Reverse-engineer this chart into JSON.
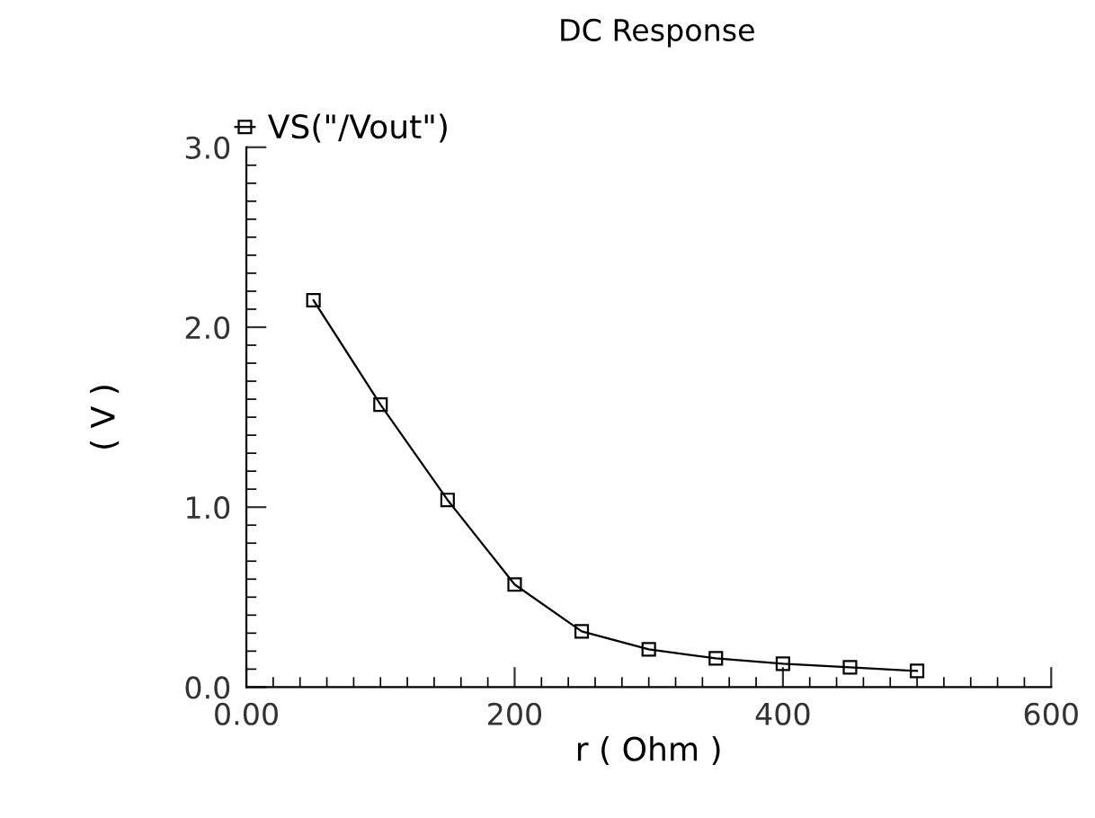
{
  "chart_data": {
    "type": "line",
    "title": "DC Response",
    "xlabel": "r ( Ohm )",
    "ylabel": "( V )",
    "x": [
      50,
      100,
      150,
      200,
      250,
      300,
      350,
      400,
      450,
      500
    ],
    "series": [
      {
        "name": "VS(\"/Vout\")",
        "color": "#000000",
        "values": [
          2.15,
          1.57,
          1.04,
          0.57,
          0.31,
          0.21,
          0.16,
          0.13,
          0.11,
          0.09
        ]
      }
    ],
    "xlim": [
      0,
      600
    ],
    "xticks": [
      {
        "value": 0,
        "label": "0.00"
      },
      200,
      400,
      600
    ],
    "ylim": [
      0,
      3
    ],
    "yticks": [
      {
        "value": 0,
        "label": "0.0"
      },
      {
        "value": 1,
        "label": "1.0"
      },
      {
        "value": 2,
        "label": "2.0"
      },
      {
        "value": 3,
        "label": "3.0"
      }
    ],
    "marker": "square",
    "line_style": "solid",
    "grid": false,
    "legend": "top left"
  }
}
